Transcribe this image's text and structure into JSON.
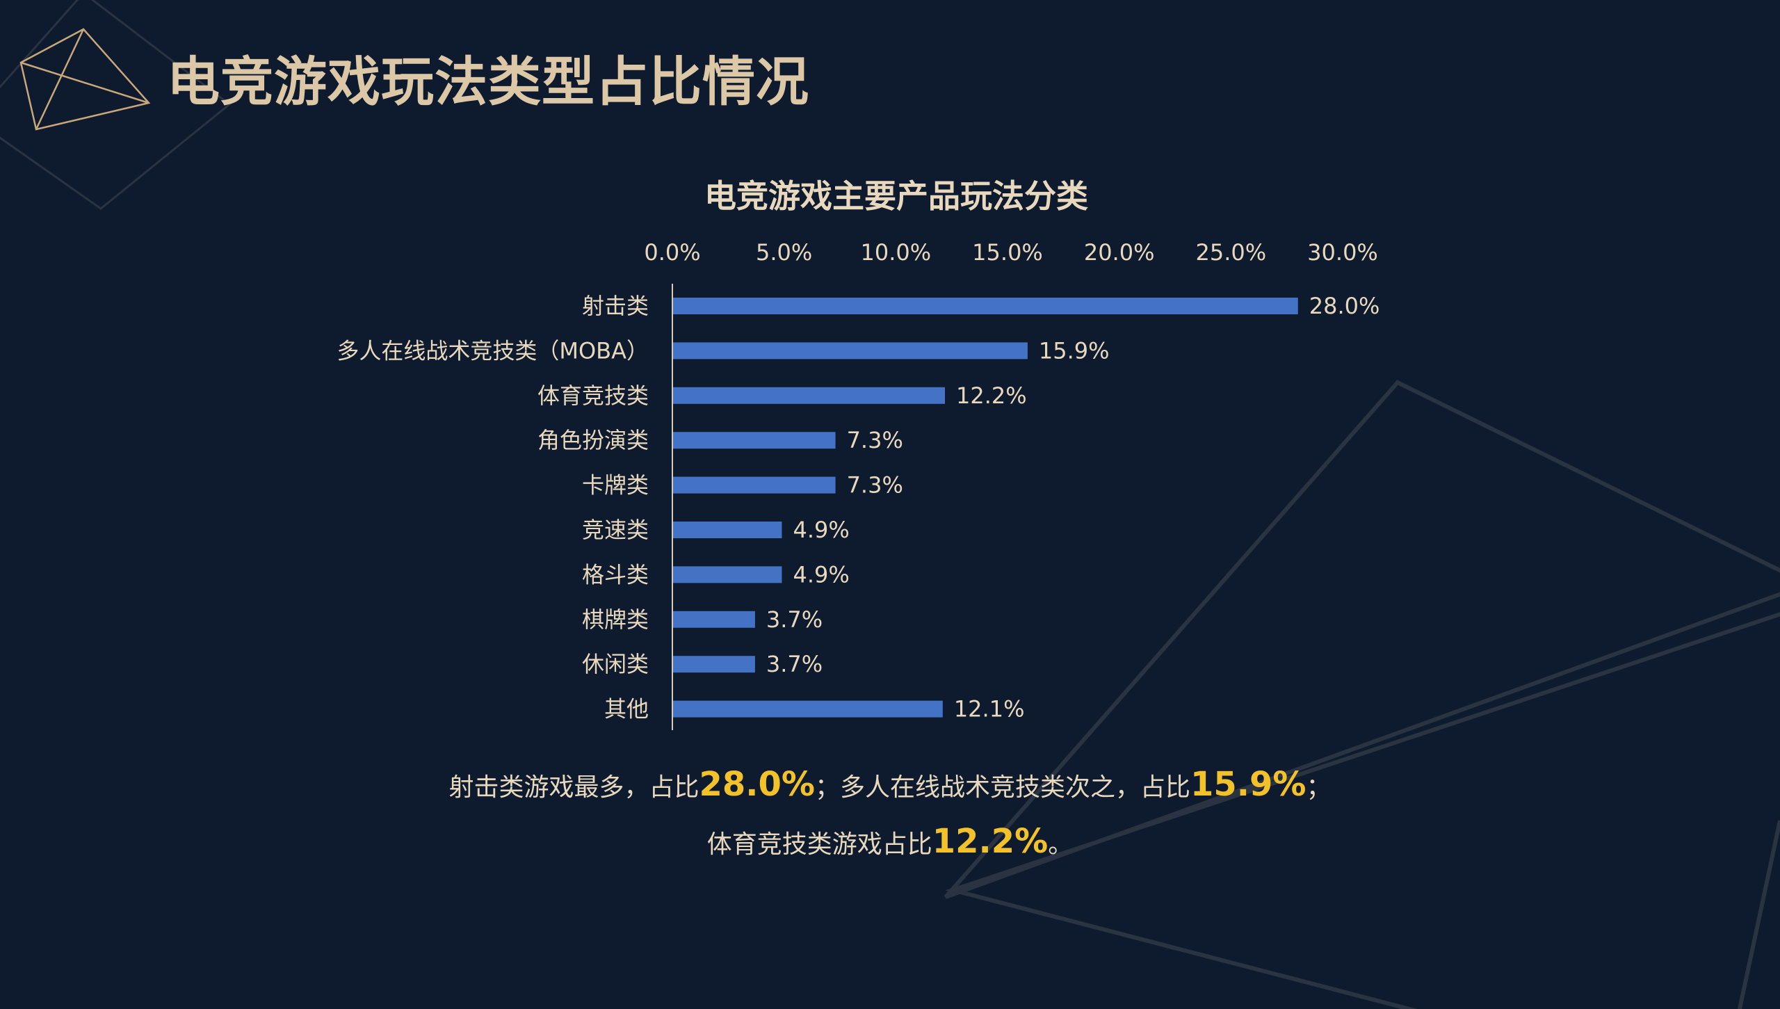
{
  "page": {
    "title": "电竞游戏玩法类型占比情况"
  },
  "colors": {
    "background": "#0e1a2d",
    "title": "#dcc7a6",
    "bar": "#4472c4",
    "label": "#e8d9be",
    "highlight": "#f3c22b"
  },
  "chart_data": {
    "type": "bar",
    "orientation": "horizontal",
    "title": "电竞游戏主要产品玩法分类",
    "categories": [
      "射击类",
      "多人在线战术竞技类（MOBA）",
      "体育竞技类",
      "角色扮演类",
      "卡牌类",
      "竞速类",
      "格斗类",
      "棋牌类",
      "休闲类",
      "其他"
    ],
    "values": [
      28.0,
      15.9,
      12.2,
      7.3,
      7.3,
      4.9,
      4.9,
      3.7,
      3.7,
      12.1
    ],
    "value_labels": [
      "28.0%",
      "15.9%",
      "12.2%",
      "7.3%",
      "7.3%",
      "4.9%",
      "4.9%",
      "3.7%",
      "3.7%",
      "12.1%"
    ],
    "xlim": [
      0,
      30
    ],
    "xticks": [
      0,
      5,
      10,
      15,
      20,
      25,
      30
    ],
    "xtick_labels": [
      "0.0%",
      "5.0%",
      "10.0%",
      "15.0%",
      "20.0%",
      "25.0%",
      "30.0%"
    ],
    "axis_position": "top",
    "grid": false,
    "legend": "none"
  },
  "summary": {
    "line1_a": "射击类游戏最多，占比",
    "line1_b": "28.0%",
    "line1_c": "；多人在线战术竞技类次之，占比",
    "line1_d": "15.9%",
    "line1_e": "；",
    "line2_a": "体育竞技类游戏占比",
    "line2_b": "12.2%",
    "line2_c": "。"
  }
}
